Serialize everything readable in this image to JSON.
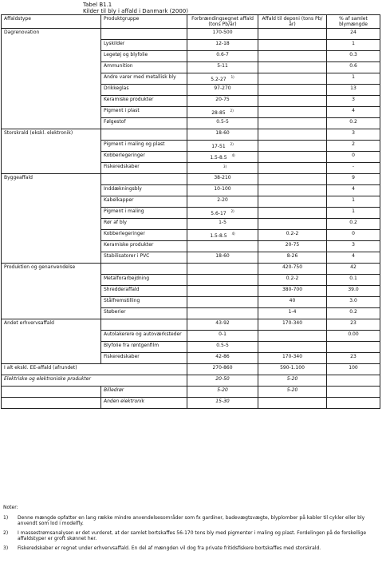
{
  "title": {
    "line1": "Tabel B1.1",
    "line2": "Kilder til bly i affald i Danmark (2000)"
  },
  "headers": [
    "Affaldstype",
    "Produktgruppe",
    "Forbrændingsegnet affald (tons Pb/år)",
    "Affald til deponi (tons Pb/år)",
    "% af samlet blymængde"
  ],
  "groups": [
    {
      "type": "Dagrenovation",
      "forbr": "170-500",
      "deponi": "",
      "pct": "24",
      "bold": true,
      "rows": [
        {
          "prod": "Lyskilder",
          "forbr": "12-18",
          "deponi": "",
          "pct": "1",
          "note": ""
        },
        {
          "prod": "Legetøj og blyfolie",
          "forbr": "0.6-7",
          "deponi": "",
          "pct": "0.3",
          "note": ""
        },
        {
          "prod": "Ammunition",
          "forbr": "5-11",
          "deponi": "",
          "pct": "0.6",
          "note": ""
        },
        {
          "prod": "Andre varer med metallisk bly",
          "forbr": "5.2-27",
          "deponi": "",
          "pct": "1",
          "note": "1)"
        },
        {
          "prod": "Drikkeglas",
          "forbr": "97-270",
          "deponi": "",
          "pct": "13",
          "note": ""
        },
        {
          "prod": "Keramiske produkter",
          "forbr": "20-75",
          "deponi": "",
          "pct": "3",
          "note": ""
        },
        {
          "prod": "Pigment i plast",
          "forbr": "28-85",
          "deponi": "",
          "pct": "4",
          "note": "2)"
        },
        {
          "prod": "Følgestof",
          "forbr": "0.5-5",
          "deponi": "",
          "pct": "0.2",
          "note": ""
        }
      ]
    },
    {
      "type": "Storskrald (ekskl. elektronik)",
      "forbr": "18-60",
      "deponi": "",
      "pct": "3",
      "bold": true,
      "rows": [
        {
          "prod": "Pigment i maling og plast",
          "forbr": "17-51",
          "deponi": "",
          "pct": "2",
          "note": "2)"
        },
        {
          "prod": "Kobberlegeringer",
          "forbr": "1.5-8.5",
          "deponi": "",
          "pct": "0",
          "note": "4)"
        },
        {
          "prod": "Fiskeredskaber",
          "forbr": "",
          "deponi": "",
          "pct": "-",
          "note": "3)"
        }
      ]
    },
    {
      "type": "Byggeaffald",
      "forbr": "38-210",
      "deponi": "",
      "pct": "9",
      "bold": true,
      "rows": [
        {
          "prod": "Inddækningsbly",
          "forbr": "10-100",
          "deponi": "",
          "pct": "4",
          "note": ""
        },
        {
          "prod": "Kabelkapper",
          "forbr": "2-20",
          "deponi": "",
          "pct": "1",
          "note": ""
        },
        {
          "prod": "Pigment i maling",
          "forbr": "5.6-17",
          "deponi": "",
          "pct": "1",
          "note": "2)"
        },
        {
          "prod": "Rør af bly",
          "forbr": "1-5",
          "deponi": "",
          "pct": "0.2",
          "note": ""
        },
        {
          "prod": "Kobberlegeringer",
          "forbr": "1.5-8.5",
          "deponi": "0.2-2",
          "pct": "0",
          "note": "4)"
        },
        {
          "prod": "Keramiske produkter",
          "forbr": "",
          "deponi": "20-75",
          "pct": "3",
          "note": ""
        },
        {
          "prod": "Stabilisatorer i PVC",
          "forbr": "18-60",
          "deponi": "8-26",
          "pct": "4",
          "note": ""
        }
      ]
    },
    {
      "type": "Produktion og genanvendelse",
      "forbr": "",
      "deponi": "420-750",
      "pct": "42",
      "bold": true,
      "rows": [
        {
          "prod": "Metalforarbejdning",
          "forbr": "",
          "deponi": "0.2-2",
          "pct": "0.1",
          "note": ""
        },
        {
          "prod": "Shredderaffald",
          "forbr": "",
          "deponi": "380-700",
          "pct": "39.0",
          "note": ""
        },
        {
          "prod": "Stålfremstilling",
          "forbr": "",
          "deponi": "40",
          "pct": "3.0",
          "note": ""
        },
        {
          "prod": "Støberier",
          "forbr": "",
          "deponi": "1-4",
          "pct": "0.2",
          "note": ""
        }
      ]
    },
    {
      "type": "Andet erhvervsaffald",
      "forbr": "43-92",
      "deponi": "170-340",
      "pct": "23",
      "bold": true,
      "rows": [
        {
          "prod": "Autolakerere og autoværksteder",
          "forbr": "0-1",
          "deponi": "",
          "pct": "0.00",
          "note": ""
        },
        {
          "prod": "Blyfolie fra røntgenfilm",
          "forbr": "0.5-5",
          "deponi": "",
          "pct": "",
          "note": ""
        },
        {
          "prod": "Fiskeredskaber",
          "forbr": "42-86",
          "deponi": "170-340",
          "pct": "23",
          "note": ""
        }
      ]
    }
  ],
  "total": {
    "label": "I alt ekskl. EE-affald (afrundet)",
    "forbr": "270-860",
    "deponi": "590-1.100",
    "pct": "100"
  },
  "ee": {
    "label": "Elektriske og elektroniske produkter",
    "forbr": "20-50",
    "deponi": "5-20",
    "rows": [
      {
        "prod": "Billedrør",
        "forbr": "5-20",
        "deponi": "5-20"
      },
      {
        "prod": "Anden elektronik",
        "forbr": "15-30",
        "deponi": ""
      }
    ]
  },
  "notes": {
    "heading": "Noter:",
    "items": [
      {
        "num": "1)",
        "text": "Denne mængde opfatter en lang række mindre anvendelsesområder som fx gardiner, badevægtsvægte, blyplomber på kabler til cykler eller bly anvendt som lod i modelfly."
      },
      {
        "num": "2)",
        "text": "I massestrømsanalysen er det vurderet, at der samlet bortskaffes 56-170 tons bly med pigmenter i maling og plast. Fordelingen på de forskellige affaldstyper er groft skønnet her."
      },
      {
        "num": "3)",
        "text": "Fiskeredskaber er regnet under erhvervsaffald. En del af mængden vil dog fra private fritidsfiskere bortskaffes med storskrald."
      }
    ]
  }
}
